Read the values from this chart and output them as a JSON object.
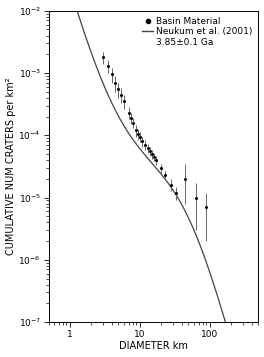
{
  "title": "",
  "xlabel": "DIAMETER km",
  "ylabel": "CUMULATIVE NUM CRATERS per km²",
  "xlim": [
    0.5,
    500
  ],
  "ylim": [
    1e-07,
    0.01
  ],
  "legend_entries": [
    "Basin Material",
    "Neukum et al. (2001)",
    "3.85±0.1 Ga"
  ],
  "data_points": {
    "x": [
      3.0,
      3.5,
      4.0,
      4.5,
      5.0,
      5.5,
      6.0,
      7.0,
      7.5,
      8.0,
      9.0,
      9.5,
      10.0,
      11.0,
      12.0,
      13.0,
      14.0,
      15.0,
      16.0,
      17.0,
      20.0,
      23.0,
      28.0,
      33.0,
      45.0,
      65.0,
      90.0
    ],
    "y": [
      0.0018,
      0.0013,
      0.00095,
      0.0007,
      0.00055,
      0.00045,
      0.00035,
      0.00023,
      0.00019,
      0.00016,
      0.00012,
      0.000105,
      9.5e-05,
      8e-05,
      7e-05,
      6.2e-05,
      5.5e-05,
      5e-05,
      4.5e-05,
      4e-05,
      3e-05,
      2.3e-05,
      1.6e-05,
      1.2e-05,
      2e-05,
      1e-05,
      7e-06
    ],
    "yerr_lo": [
      0.0004,
      0.0003,
      0.00025,
      0.0002,
      0.00015,
      0.00012,
      9e-05,
      5e-05,
      4e-05,
      3e-05,
      2.5e-05,
      2e-05,
      1.8e-05,
      1.5e-05,
      1.3e-05,
      1.1e-05,
      9e-06,
      8e-06,
      7e-06,
      7e-06,
      5e-06,
      4e-06,
      3.5e-06,
      3e-06,
      1.2e-05,
      7e-06,
      5e-06
    ],
    "yerr_hi": [
      0.0004,
      0.0003,
      0.00025,
      0.0002,
      0.00015,
      0.00012,
      9e-05,
      5e-05,
      4e-05,
      3e-05,
      2.5e-05,
      2e-05,
      1.8e-05,
      1.5e-05,
      1.3e-05,
      1.1e-05,
      9e-06,
      8e-06,
      7e-06,
      7e-06,
      5e-06,
      4e-06,
      3.5e-06,
      3e-06,
      1.5e-05,
      7e-06,
      5e-06
    ]
  },
  "neukum_age_Ga": 3.85,
  "background_color": "#ffffff",
  "data_color": "#000000",
  "line_color": "#444444",
  "marker": ".",
  "marker_size": 4.0,
  "fontsize_label": 7,
  "fontsize_tick": 6.5,
  "fontsize_legend": 6.5
}
